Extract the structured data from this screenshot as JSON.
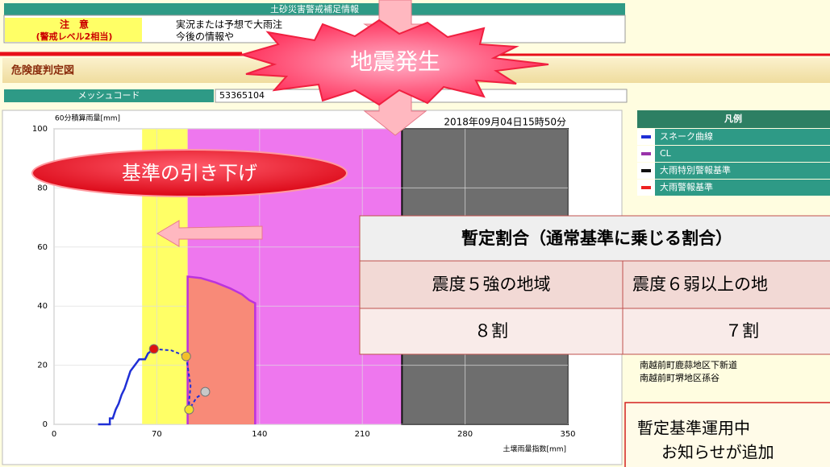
{
  "header": {
    "title": "土砂災害警戒補足情報",
    "level": "注　意",
    "level_note": "(警戒レベル2相当)",
    "lines": [
      "実況または予想で大雨注",
      "今後の情報や"
    ]
  },
  "banner": "地震発生",
  "section_title": "危険度判定図",
  "mesh": {
    "label": "メッシュコード",
    "code": "53365104"
  },
  "chart_data": {
    "type": "line",
    "timestamp": "2018年09月04日15時50分",
    "y_label": "60分積算雨量[mm]",
    "x_label": "土壌雨量指数[mm]",
    "xlim": [
      0,
      350
    ],
    "xticks": [
      0,
      70,
      140,
      210,
      280,
      350
    ],
    "ylim": [
      0,
      100
    ],
    "yticks": [
      0,
      20,
      40,
      60,
      80,
      100
    ],
    "grid": true,
    "bands": [
      {
        "x": [
          60,
          91
        ],
        "color": "#ffff66"
      },
      {
        "x": [
          91,
          237
        ],
        "color": "#ee77ee"
      },
      {
        "x": [
          237,
          350
        ],
        "color": "#6e6e6e"
      }
    ],
    "series": [
      {
        "name": "スネーク曲線",
        "color": "#1f2fd6",
        "x": [
          30,
          38,
          38,
          40,
          42,
          44,
          46,
          48,
          50,
          52,
          55,
          58,
          62,
          64,
          68
        ],
        "values": [
          0,
          0,
          2,
          2,
          5,
          7,
          10,
          12,
          15,
          18,
          20,
          22,
          22,
          24,
          25.5
        ]
      },
      {
        "name": "CL",
        "color": "#bb33dd",
        "fill": "#f88a78",
        "x": [
          91,
          91,
          100,
          110,
          120,
          128,
          133,
          137,
          137
        ],
        "values": [
          0,
          50,
          49.5,
          48,
          46,
          44,
          42,
          41,
          0
        ]
      }
    ],
    "forecast": {
      "color": "#1f2fd6",
      "x": [
        68,
        80,
        90,
        93,
        92,
        92,
        97,
        103
      ],
      "values": [
        25.5,
        25,
        23,
        13,
        8,
        5,
        9,
        11
      ]
    },
    "points": [
      {
        "x": 68,
        "y": 25.5,
        "color": "#dd1111"
      },
      {
        "x": 90,
        "y": 23,
        "color": "#f2c02a"
      },
      {
        "x": 92,
        "y": 5,
        "color": "#f2e02a"
      },
      {
        "x": 103,
        "y": 11,
        "color": "#c8c8c8"
      }
    ]
  },
  "legend": {
    "title": "凡例",
    "items": [
      {
        "name": "スネーク曲線",
        "color": "#1f2fd6"
      },
      {
        "name": "CL",
        "color": "#9933aa"
      },
      {
        "name": "大雨特別警報基準",
        "color": "#111111"
      },
      {
        "name": "大雨警報基準",
        "color": "#ee2222"
      }
    ]
  },
  "places": [
    "南越前町鹿蒜地区下新道",
    "南越前町堺地区孫谷"
  ],
  "callout": "基準の引き下げ",
  "table": {
    "title": "暫定割合（通常基準に乗じる割合）",
    "headers": [
      "震度５強の地域",
      "震度６弱以上の地"
    ],
    "cells": [
      "８割",
      "７割"
    ]
  },
  "notice": [
    "暫定基準運用中",
    "お知らせが追加"
  ]
}
